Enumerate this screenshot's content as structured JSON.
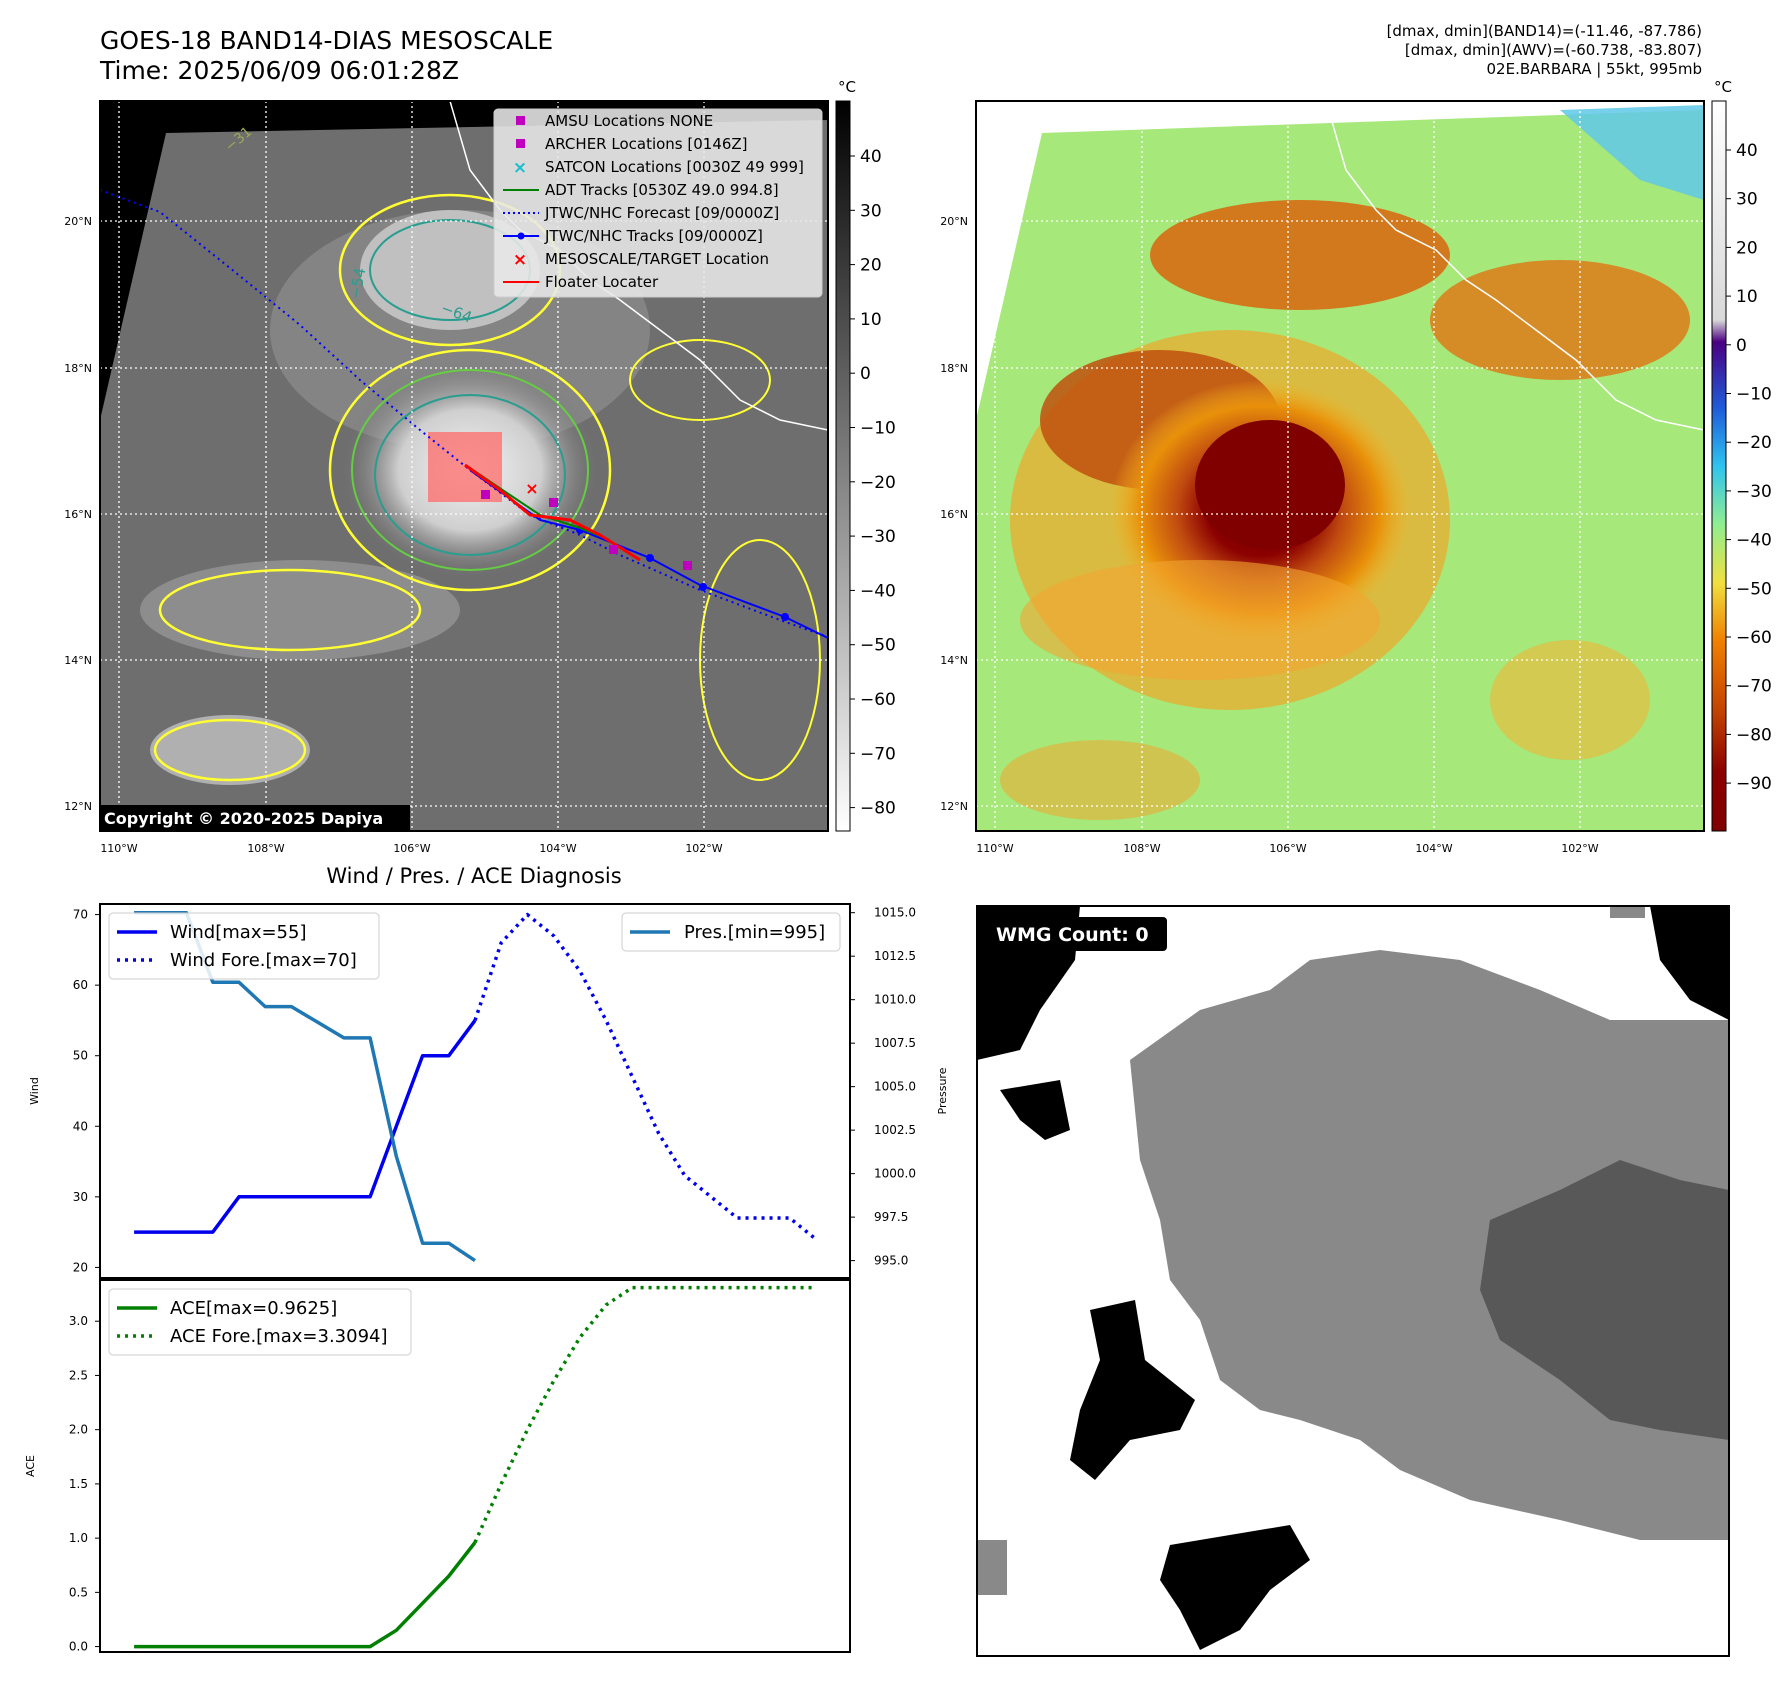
{
  "header": {
    "title_line1": "GOES-18 BAND14-DIAS MESOSCALE",
    "title_line2": "Time: 2025/06/09 06:01:28Z",
    "stat_line1": "[dmax, dmin](BAND14)=(-11.46, -87.786)",
    "stat_line2": "[dmax, dmin](AWV)=(-60.738, -83.807)",
    "stat_line3": "02E.BARBARA | 55kt, 995mb"
  },
  "map_left": {
    "unit": "°C",
    "copyright": "Copyright © 2020-2025 Dapiya",
    "lat_labels": [
      "20°N",
      "18°N",
      "16°N",
      "14°N",
      "12°N"
    ],
    "lon_labels": [
      "110°W",
      "108°W",
      "106°W",
      "104°W",
      "102°W"
    ],
    "colorbar_ticks": [
      "40",
      "30",
      "20",
      "10",
      "0",
      "−10",
      "−20",
      "−30",
      "−40",
      "−50",
      "−60",
      "−70",
      "−80"
    ],
    "contour_labels": [
      "−54",
      "−64",
      "−31"
    ],
    "legend": [
      {
        "label": "AMSU Locations NONE",
        "color": "#bf00bf",
        "marker": "square"
      },
      {
        "label": "ARCHER Locations [0146Z]",
        "color": "#bf00bf",
        "marker": "square"
      },
      {
        "label": "SATCON Locations [0030Z 49 999]",
        "color": "#17becf",
        "marker": "x"
      },
      {
        "label": "ADT Tracks [0530Z 49.0 994.8]",
        "color": "#008000",
        "marker": "line"
      },
      {
        "label": "JTWC/NHC Forecast [09/0000Z]",
        "color": "#0000ff",
        "marker": "dotted"
      },
      {
        "label": "JTWC/NHC Tracks [09/0000Z]",
        "color": "#0000ff",
        "marker": "line-dot"
      },
      {
        "label": "MESOSCALE/TARGET Location",
        "color": "#ff0000",
        "marker": "x"
      },
      {
        "label": "Floater Locater",
        "color": "#ff0000",
        "marker": "line"
      }
    ]
  },
  "map_right": {
    "unit": "°C",
    "lat_labels": [
      "20°N",
      "18°N",
      "16°N",
      "14°N",
      "12°N"
    ],
    "lon_labels": [
      "110°W",
      "108°W",
      "106°W",
      "104°W",
      "102°W"
    ],
    "colorbar_ticks": [
      "40",
      "30",
      "20",
      "10",
      "0",
      "−10",
      "−20",
      "−30",
      "−40",
      "−50",
      "−60",
      "−70",
      "−80",
      "−90"
    ]
  },
  "wmg": {
    "label": "WMG Count: 0"
  },
  "chart_data": [
    {
      "type": "line",
      "title": "Wind / Pres. / ACE Diagnosis",
      "ylabel": "Wind",
      "y2label": "Pressure",
      "ylim": [
        18.5,
        71.5
      ],
      "y2lim": [
        994.0,
        1015.5
      ],
      "yticks": [
        "70",
        "60",
        "50",
        "40",
        "30",
        "20"
      ],
      "y2ticks": [
        "1015.0",
        "1012.5",
        "1010.0",
        "1007.5",
        "1005.0",
        "1002.5",
        "1000.0",
        "997.5",
        "995.0"
      ],
      "xlim": [
        -1.3,
        27.3
      ],
      "series": [
        {
          "name": "Wind[max=55]",
          "axis": "left",
          "color": "#0000ee",
          "style": "solid",
          "x": [
            0,
            1,
            2,
            3,
            4,
            5,
            6,
            7,
            8,
            9,
            10,
            11,
            12,
            13
          ],
          "y": [
            25,
            25,
            25,
            25,
            30,
            30,
            30,
            30,
            30,
            30,
            40,
            50,
            50,
            55
          ]
        },
        {
          "name": "Wind Fore.[max=70]",
          "axis": "left",
          "color": "#0000ee",
          "style": "dotted",
          "x": [
            13,
            14,
            15,
            16,
            17,
            18,
            19,
            20,
            21,
            22,
            23,
            24,
            25,
            26
          ],
          "y": [
            55,
            66,
            70,
            67,
            62,
            55,
            47,
            39,
            33,
            30,
            27,
            27,
            27,
            24
          ]
        },
        {
          "name": "Pres.[min=995]",
          "axis": "right",
          "color": "#1f77b4",
          "style": "solid",
          "x": [
            0,
            1,
            2,
            3,
            4,
            5,
            6,
            7,
            8,
            9,
            10,
            11,
            12,
            13
          ],
          "y": [
            1015,
            1015,
            1015,
            1011,
            1011,
            1009.6,
            1009.6,
            1008.7,
            1007.8,
            1007.8,
            1001,
            996,
            996,
            995
          ]
        }
      ],
      "legend_left": [
        "Wind[max=55]",
        "Wind Fore.[max=70]"
      ],
      "legend_right": [
        "Pres.[min=995]"
      ]
    },
    {
      "type": "line",
      "ylabel": "ACE",
      "ylim": [
        -0.05,
        3.38
      ],
      "yticks": [
        "3.0",
        "2.5",
        "2.0",
        "1.5",
        "1.0",
        "0.5",
        "0.0"
      ],
      "xlim": [
        -1.3,
        27.3
      ],
      "series": [
        {
          "name": "ACE[max=0.9625]",
          "color": "#008000",
          "style": "solid",
          "x": [
            0,
            1,
            2,
            3,
            4,
            5,
            6,
            7,
            8,
            9,
            10,
            11,
            12,
            13
          ],
          "y": [
            0,
            0,
            0,
            0,
            0,
            0,
            0,
            0,
            0,
            0,
            0.15,
            0.4,
            0.65,
            0.96
          ]
        },
        {
          "name": "ACE Fore.[max=3.3094]",
          "color": "#008000",
          "style": "dotted",
          "x": [
            13,
            14,
            15,
            16,
            17,
            18,
            19,
            20,
            21,
            22,
            23,
            24,
            25,
            26
          ],
          "y": [
            0.96,
            1.5,
            2.0,
            2.45,
            2.85,
            3.15,
            3.31,
            3.31,
            3.31,
            3.31,
            3.31,
            3.31,
            3.31,
            3.31
          ]
        }
      ]
    }
  ]
}
